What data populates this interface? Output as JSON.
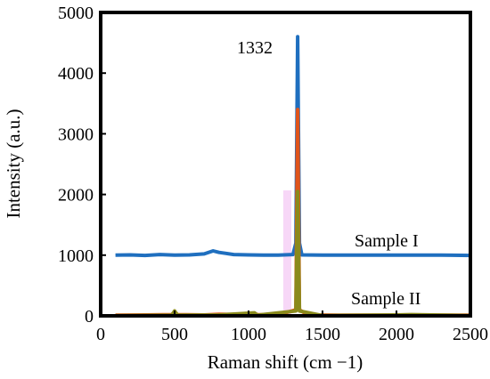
{
  "chart_data": {
    "type": "line",
    "title": "",
    "xlabel": "Raman shift (cm −1)",
    "ylabel": "Intensity (a.u.)",
    "xlim": [
      0,
      2500
    ],
    "ylim": [
      0,
      5000
    ],
    "xticks": [
      0,
      500,
      1000,
      1500,
      2000,
      2500
    ],
    "yticks": [
      0,
      1000,
      2000,
      3000,
      4000,
      5000
    ],
    "grid": false,
    "legend": "none",
    "annotations": [
      {
        "text": "1332",
        "x": 1332,
        "y": 4600
      },
      {
        "text": "Sample I",
        "x": 1800,
        "y": 1000
      },
      {
        "text": "Sample II",
        "x": 1800,
        "y": 0
      }
    ],
    "series": [
      {
        "name": "Sample I",
        "color": "#1f6fbf",
        "points": [
          [
            100,
            1000
          ],
          [
            200,
            1005
          ],
          [
            300,
            995
          ],
          [
            400,
            1010
          ],
          [
            500,
            1000
          ],
          [
            600,
            1005
          ],
          [
            700,
            1020
          ],
          [
            760,
            1070
          ],
          [
            800,
            1045
          ],
          [
            900,
            1010
          ],
          [
            1000,
            1005
          ],
          [
            1100,
            1000
          ],
          [
            1200,
            1000
          ],
          [
            1300,
            1010
          ],
          [
            1320,
            1200
          ],
          [
            1332,
            4600
          ],
          [
            1344,
            1200
          ],
          [
            1360,
            1005
          ],
          [
            1500,
            1000
          ],
          [
            1700,
            1000
          ],
          [
            1900,
            1000
          ],
          [
            2100,
            1000
          ],
          [
            2300,
            1000
          ],
          [
            2500,
            995
          ]
        ]
      },
      {
        "name": "Sample II (orange)",
        "color": "#e0541a",
        "points": [
          [
            100,
            10
          ],
          [
            300,
            15
          ],
          [
            480,
            20
          ],
          [
            500,
            60
          ],
          [
            520,
            20
          ],
          [
            700,
            15
          ],
          [
            800,
            25
          ],
          [
            1000,
            20
          ],
          [
            1040,
            40
          ],
          [
            1060,
            20
          ],
          [
            1200,
            15
          ],
          [
            1320,
            100
          ],
          [
            1332,
            3400
          ],
          [
            1344,
            100
          ],
          [
            1400,
            15
          ],
          [
            1600,
            10
          ],
          [
            1800,
            10
          ],
          [
            2000,
            10
          ],
          [
            2200,
            10
          ],
          [
            2500,
            10
          ]
        ]
      },
      {
        "name": "Sample II (olive)",
        "color": "#8a8a1c",
        "points": [
          [
            100,
            5
          ],
          [
            480,
            10
          ],
          [
            500,
            80
          ],
          [
            520,
            10
          ],
          [
            800,
            15
          ],
          [
            1040,
            50
          ],
          [
            1060,
            10
          ],
          [
            1320,
            80
          ],
          [
            1332,
            2050
          ],
          [
            1344,
            80
          ],
          [
            1500,
            5
          ],
          [
            2000,
            15
          ],
          [
            2100,
            20
          ],
          [
            2500,
            5
          ]
        ]
      }
    ]
  }
}
